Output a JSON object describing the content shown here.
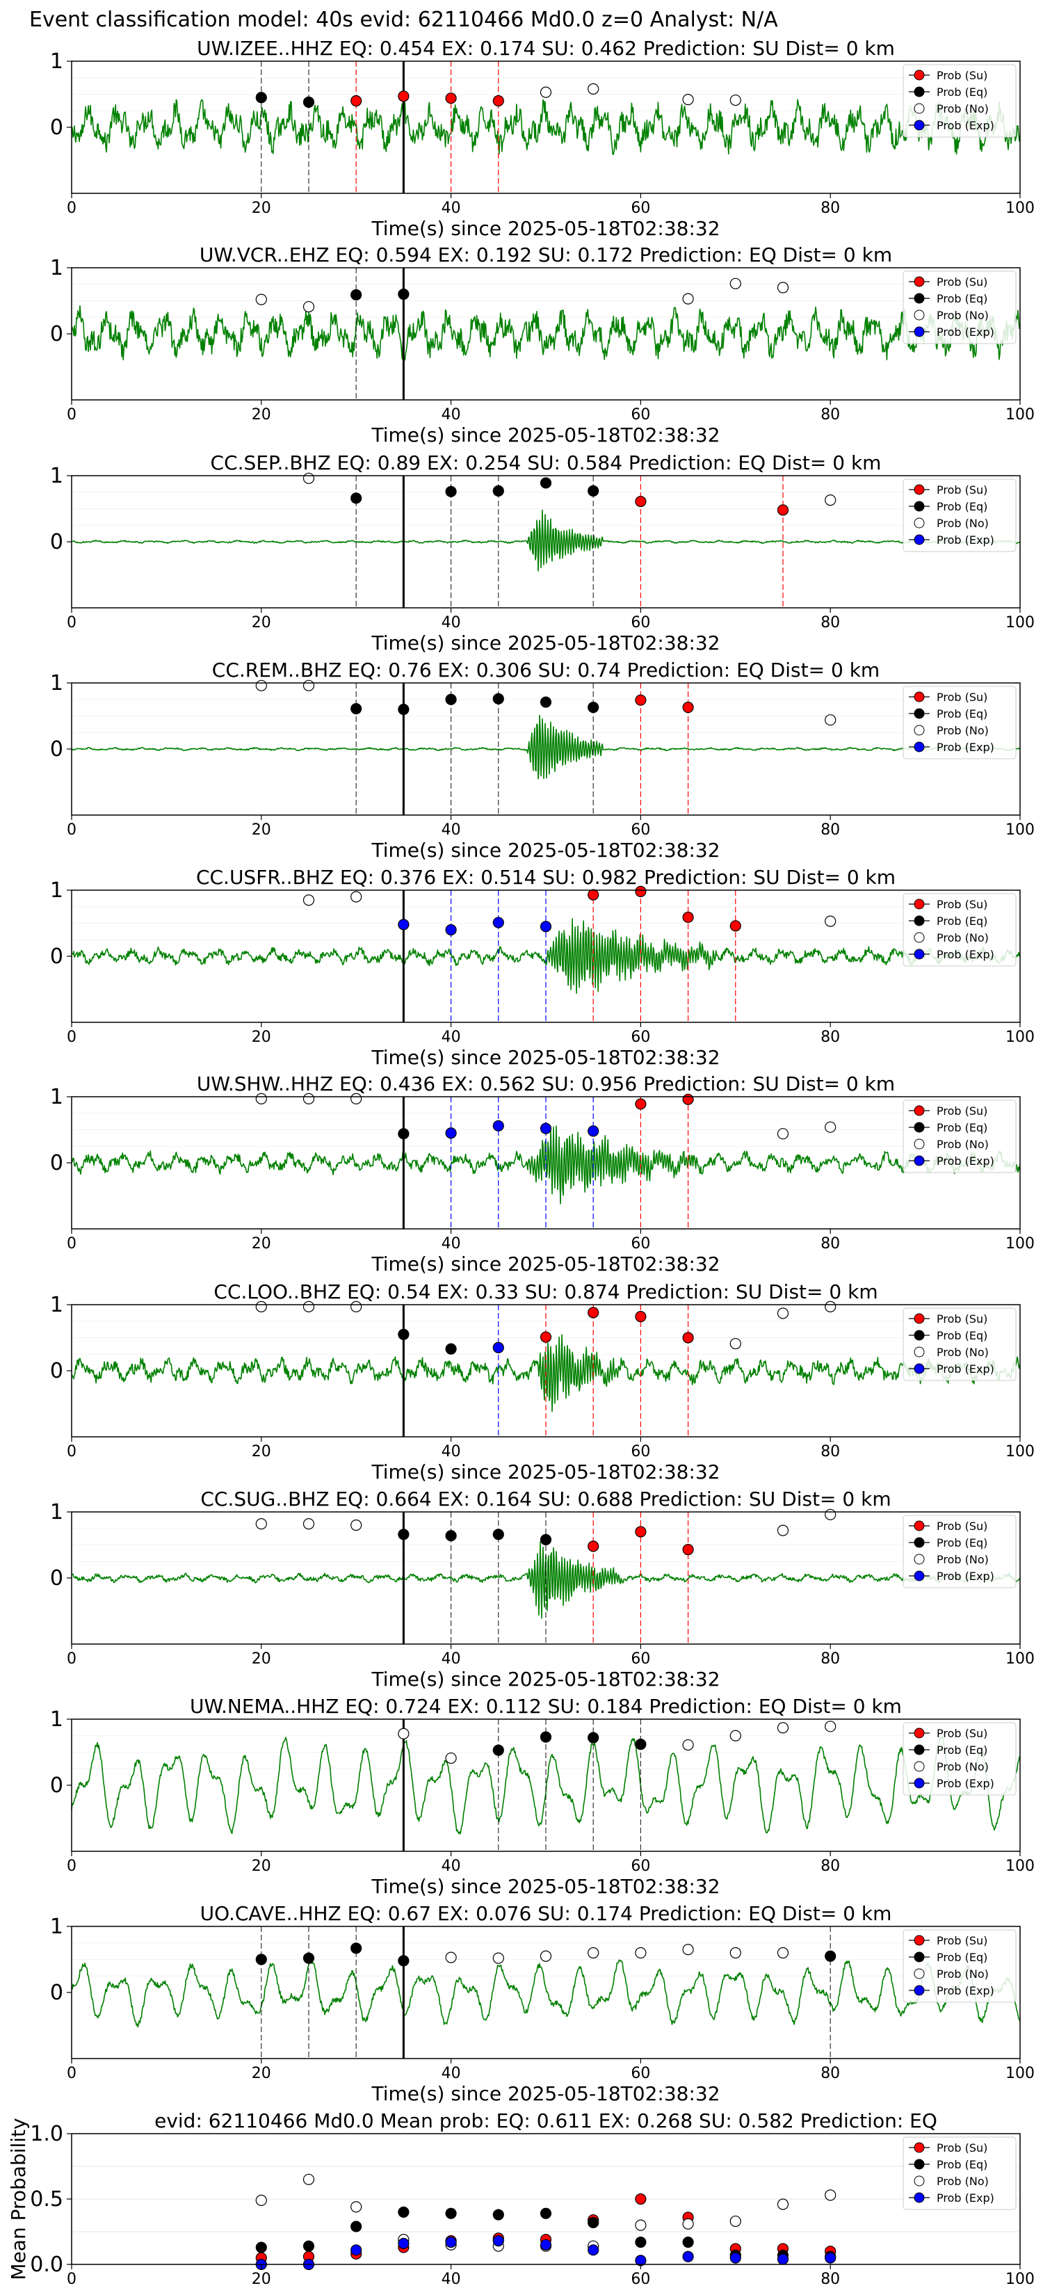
{
  "page_title": "Event classification model: 40s evid: 62110466 Md0.0 z=0 Analyst: N/A",
  "colors": {
    "waveform": "#008000",
    "su": "#ff0000",
    "eq": "#000000",
    "no": "#ffffff",
    "exp": "#0000ff",
    "pick": "#000000"
  },
  "legend": [
    "Prob (Su)",
    "Prob (Eq)",
    "Prob (No)",
    "Prob (Exp)"
  ],
  "chart_data": [
    {
      "type": "line",
      "title": "UW.IZEE..HHZ   EQ: 0.454  EX: 0.174  SU: 0.462   Prediction: SU    Dist= 0 km",
      "xlabel": "Time(s) since 2025-05-18T02:38:32",
      "ylabel": "",
      "xlim": [
        0,
        100
      ],
      "ylim": [
        -1,
        1
      ],
      "x_ticks": [
        "0",
        "20",
        "40",
        "60",
        "80",
        "100"
      ],
      "y_ticks": [
        "0",
        "1"
      ],
      "waveform": {
        "kind": "noisy",
        "amplitude": 0.35
      },
      "pick_time": 35,
      "su_lines": [
        30,
        35,
        40,
        45
      ],
      "eq_lines": [
        20,
        25
      ],
      "exp_lines": [],
      "series": [
        {
          "name": "Prob (Su)",
          "x": [
            30,
            35,
            40,
            45
          ],
          "y": [
            0.4,
            0.47,
            0.44,
            0.4
          ]
        },
        {
          "name": "Prob (Eq)",
          "x": [
            20,
            25
          ],
          "y": [
            0.45,
            0.38
          ]
        },
        {
          "name": "Prob (No)",
          "x": [
            50,
            55,
            65,
            70
          ],
          "y": [
            0.53,
            0.58,
            0.42,
            0.41
          ]
        },
        {
          "name": "Prob (Exp)",
          "x": [],
          "y": []
        }
      ]
    },
    {
      "type": "line",
      "title": "UW.VCR..EHZ   EQ: 0.594  EX: 0.192  SU: 0.172   Prediction: EQ    Dist= 0 km",
      "xlabel": "Time(s) since 2025-05-18T02:38:32",
      "ylabel": "",
      "xlim": [
        0,
        100
      ],
      "ylim": [
        -1,
        1
      ],
      "x_ticks": [
        "0",
        "20",
        "40",
        "60",
        "80",
        "100"
      ],
      "y_ticks": [
        "0",
        "1"
      ],
      "waveform": {
        "kind": "noisy",
        "amplitude": 0.35
      },
      "pick_time": 35,
      "su_lines": [],
      "eq_lines": [
        30,
        35
      ],
      "exp_lines": [],
      "series": [
        {
          "name": "Prob (Su)",
          "x": [],
          "y": []
        },
        {
          "name": "Prob (Eq)",
          "x": [
            30,
            35
          ],
          "y": [
            0.59,
            0.6
          ]
        },
        {
          "name": "Prob (No)",
          "x": [
            20,
            25,
            65,
            70,
            75
          ],
          "y": [
            0.52,
            0.41,
            0.53,
            0.76,
            0.7
          ]
        },
        {
          "name": "Prob (Exp)",
          "x": [],
          "y": []
        }
      ]
    },
    {
      "type": "line",
      "title": "CC.SEP..BHZ   EQ: 0.89  EX: 0.254  SU: 0.584   Prediction: EQ    Dist= 0 km",
      "xlabel": "Time(s) since 2025-05-18T02:38:32",
      "ylabel": "",
      "xlim": [
        0,
        100
      ],
      "ylim": [
        -1,
        1
      ],
      "x_ticks": [
        "0",
        "20",
        "40",
        "60",
        "80",
        "100"
      ],
      "y_ticks": [
        "0",
        "1"
      ],
      "waveform": {
        "kind": "burst",
        "amplitude": 0.02,
        "burst_start": 48,
        "burst_end": 56,
        "burst_amplitude": 0.8
      },
      "pick_time": 35,
      "su_lines": [
        60,
        75
      ],
      "eq_lines": [
        30,
        40,
        45,
        55
      ],
      "exp_lines": [],
      "series": [
        {
          "name": "Prob (Su)",
          "x": [
            60,
            75
          ],
          "y": [
            0.61,
            0.48
          ]
        },
        {
          "name": "Prob (Eq)",
          "x": [
            30,
            40,
            45,
            50,
            55
          ],
          "y": [
            0.66,
            0.76,
            0.77,
            0.89,
            0.77
          ]
        },
        {
          "name": "Prob (No)",
          "x": [
            25,
            80
          ],
          "y": [
            0.96,
            0.63
          ]
        },
        {
          "name": "Prob (Exp)",
          "x": [],
          "y": []
        }
      ]
    },
    {
      "type": "line",
      "title": "CC.REM..BHZ   EQ: 0.76  EX: 0.306  SU: 0.74   Prediction: EQ    Dist= 0 km",
      "xlabel": "Time(s) since 2025-05-18T02:38:32",
      "ylabel": "",
      "xlim": [
        0,
        100
      ],
      "ylim": [
        -1,
        1
      ],
      "x_ticks": [
        "0",
        "20",
        "40",
        "60",
        "80",
        "100"
      ],
      "y_ticks": [
        "0",
        "1"
      ],
      "waveform": {
        "kind": "burst",
        "amplitude": 0.02,
        "burst_start": 48,
        "burst_end": 56,
        "burst_amplitude": 0.95
      },
      "pick_time": 35,
      "su_lines": [
        60,
        65
      ],
      "eq_lines": [
        30,
        40,
        45,
        55
      ],
      "exp_lines": [],
      "series": [
        {
          "name": "Prob (Su)",
          "x": [
            60,
            65
          ],
          "y": [
            0.74,
            0.63
          ]
        },
        {
          "name": "Prob (Eq)",
          "x": [
            30,
            35,
            40,
            45,
            50,
            55
          ],
          "y": [
            0.61,
            0.6,
            0.75,
            0.76,
            0.71,
            0.63
          ]
        },
        {
          "name": "Prob (No)",
          "x": [
            20,
            25,
            80
          ],
          "y": [
            0.96,
            0.96,
            0.44
          ]
        },
        {
          "name": "Prob (Exp)",
          "x": [],
          "y": []
        }
      ]
    },
    {
      "type": "line",
      "title": "CC.USFR..BHZ   EQ: 0.376  EX: 0.514  SU: 0.982   Prediction: SU    Dist= 0 km",
      "xlabel": "Time(s) since 2025-05-18T02:38:32",
      "ylabel": "",
      "xlim": [
        0,
        100
      ],
      "ylim": [
        -1,
        1
      ],
      "x_ticks": [
        "0",
        "20",
        "40",
        "60",
        "80",
        "100"
      ],
      "y_ticks": [
        "0",
        "1"
      ],
      "waveform": {
        "kind": "burst",
        "amplitude": 0.12,
        "burst_start": 50,
        "burst_end": 68,
        "burst_amplitude": 0.95
      },
      "pick_time": 35,
      "su_lines": [
        55,
        60,
        65,
        70
      ],
      "eq_lines": [],
      "exp_lines": [
        40,
        45,
        50
      ],
      "series": [
        {
          "name": "Prob (Su)",
          "x": [
            55,
            60,
            65,
            70
          ],
          "y": [
            0.93,
            0.98,
            0.59,
            0.46
          ]
        },
        {
          "name": "Prob (Eq)",
          "x": [],
          "y": []
        },
        {
          "name": "Prob (No)",
          "x": [
            25,
            30,
            80
          ],
          "y": [
            0.85,
            0.9,
            0.53
          ]
        },
        {
          "name": "Prob (Exp)",
          "x": [
            35,
            40,
            45,
            50
          ],
          "y": [
            0.48,
            0.4,
            0.51,
            0.45
          ]
        }
      ]
    },
    {
      "type": "line",
      "title": "UW.SHW..HHZ   EQ: 0.436  EX: 0.562  SU: 0.956   Prediction: SU    Dist= 0 km",
      "xlabel": "Time(s) since 2025-05-18T02:38:32",
      "ylabel": "",
      "xlim": [
        0,
        100
      ],
      "ylim": [
        -1,
        1
      ],
      "x_ticks": [
        "0",
        "20",
        "40",
        "60",
        "80",
        "100"
      ],
      "y_ticks": [
        "0",
        "1"
      ],
      "waveform": {
        "kind": "burst",
        "amplitude": 0.15,
        "burst_start": 48,
        "burst_end": 66,
        "burst_amplitude": 0.9
      },
      "pick_time": 35,
      "su_lines": [
        60,
        65
      ],
      "eq_lines": [],
      "exp_lines": [
        40,
        45,
        50,
        55
      ],
      "series": [
        {
          "name": "Prob (Su)",
          "x": [
            60,
            65
          ],
          "y": [
            0.89,
            0.96
          ]
        },
        {
          "name": "Prob (Eq)",
          "x": [
            35
          ],
          "y": [
            0.44
          ]
        },
        {
          "name": "Prob (No)",
          "x": [
            20,
            25,
            30,
            75,
            80
          ],
          "y": [
            0.97,
            0.97,
            0.97,
            0.44,
            0.54
          ]
        },
        {
          "name": "Prob (Exp)",
          "x": [
            40,
            45,
            50,
            55
          ],
          "y": [
            0.45,
            0.56,
            0.52,
            0.48
          ]
        }
      ]
    },
    {
      "type": "line",
      "title": "CC.LOO..BHZ   EQ: 0.54  EX: 0.33  SU: 0.874   Prediction: SU    Dist= 0 km",
      "xlabel": "Time(s) since 2025-05-18T02:38:32",
      "ylabel": "",
      "xlim": [
        0,
        100
      ],
      "ylim": [
        -1,
        1
      ],
      "x_ticks": [
        "0",
        "20",
        "40",
        "60",
        "80",
        "100"
      ],
      "y_ticks": [
        "0",
        "1"
      ],
      "waveform": {
        "kind": "burst",
        "amplitude": 0.18,
        "burst_start": 49,
        "burst_end": 58,
        "burst_amplitude": 1.0
      },
      "pick_time": 35,
      "su_lines": [
        50,
        55,
        60,
        65
      ],
      "eq_lines": [],
      "exp_lines": [
        45
      ],
      "series": [
        {
          "name": "Prob (Su)",
          "x": [
            50,
            55,
            60,
            65
          ],
          "y": [
            0.51,
            0.88,
            0.82,
            0.5
          ]
        },
        {
          "name": "Prob (Eq)",
          "x": [
            35,
            40
          ],
          "y": [
            0.55,
            0.33
          ]
        },
        {
          "name": "Prob (No)",
          "x": [
            20,
            25,
            30,
            70,
            75,
            80
          ],
          "y": [
            0.97,
            0.97,
            0.97,
            0.41,
            0.87,
            0.97
          ]
        },
        {
          "name": "Prob (Exp)",
          "x": [
            45
          ],
          "y": [
            0.35
          ]
        }
      ]
    },
    {
      "type": "line",
      "title": "CC.SUG..BHZ   EQ: 0.664  EX: 0.164  SU: 0.688   Prediction: SU    Dist= 0 km",
      "xlabel": "Time(s) since 2025-05-18T02:38:32",
      "ylabel": "",
      "xlim": [
        0,
        100
      ],
      "ylim": [
        -1,
        1
      ],
      "x_ticks": [
        "0",
        "20",
        "40",
        "60",
        "80",
        "100"
      ],
      "y_ticks": [
        "0",
        "1"
      ],
      "waveform": {
        "kind": "burst",
        "amplitude": 0.06,
        "burst_start": 48,
        "burst_end": 58,
        "burst_amplitude": 0.95
      },
      "pick_time": 35,
      "su_lines": [
        55,
        60,
        65
      ],
      "eq_lines": [
        40,
        45,
        50
      ],
      "exp_lines": [],
      "series": [
        {
          "name": "Prob (Su)",
          "x": [
            55,
            60,
            65
          ],
          "y": [
            0.48,
            0.7,
            0.43
          ]
        },
        {
          "name": "Prob (Eq)",
          "x": [
            35,
            40,
            45,
            50
          ],
          "y": [
            0.66,
            0.64,
            0.66,
            0.58
          ]
        },
        {
          "name": "Prob (No)",
          "x": [
            20,
            25,
            30,
            75,
            80
          ],
          "y": [
            0.82,
            0.82,
            0.8,
            0.72,
            0.96
          ]
        },
        {
          "name": "Prob (Exp)",
          "x": [],
          "y": []
        }
      ]
    },
    {
      "type": "line",
      "title": "UW.NEMA..HHZ   EQ: 0.724  EX: 0.112  SU: 0.184   Prediction: EQ    Dist= 0 km",
      "xlabel": "Time(s) since 2025-05-18T02:38:32",
      "ylabel": "",
      "xlim": [
        0,
        100
      ],
      "ylim": [
        -1,
        1
      ],
      "x_ticks": [
        "0",
        "20",
        "40",
        "60",
        "80",
        "100"
      ],
      "y_ticks": [
        "0",
        "1"
      ],
      "waveform": {
        "kind": "smooth",
        "amplitude": 0.75
      },
      "pick_time": 35,
      "su_lines": [],
      "eq_lines": [
        45,
        50,
        55,
        60
      ],
      "exp_lines": [],
      "series": [
        {
          "name": "Prob (Su)",
          "x": [],
          "y": []
        },
        {
          "name": "Prob (Eq)",
          "x": [
            45,
            50,
            55,
            60
          ],
          "y": [
            0.53,
            0.73,
            0.72,
            0.62
          ]
        },
        {
          "name": "Prob (No)",
          "x": [
            35,
            40,
            65,
            70,
            75,
            80
          ],
          "y": [
            0.78,
            0.41,
            0.61,
            0.75,
            0.87,
            0.89
          ]
        },
        {
          "name": "Prob (Exp)",
          "x": [],
          "y": []
        }
      ]
    },
    {
      "type": "line",
      "title": "UO.CAVE..HHZ   EQ: 0.67  EX: 0.076  SU: 0.174   Prediction: EQ    Dist= 0 km",
      "xlabel": "Time(s) since 2025-05-18T02:38:32",
      "ylabel": "",
      "xlim": [
        0,
        100
      ],
      "ylim": [
        -1,
        1
      ],
      "x_ticks": [
        "0",
        "20",
        "40",
        "60",
        "80",
        "100"
      ],
      "y_ticks": [
        "0",
        "1"
      ],
      "waveform": {
        "kind": "smooth",
        "amplitude": 0.5
      },
      "pick_time": 35,
      "su_lines": [],
      "eq_lines": [
        20,
        25,
        30,
        80
      ],
      "exp_lines": [],
      "series": [
        {
          "name": "Prob (Su)",
          "x": [],
          "y": []
        },
        {
          "name": "Prob (Eq)",
          "x": [
            20,
            25,
            30,
            35,
            80
          ],
          "y": [
            0.5,
            0.52,
            0.67,
            0.48,
            0.55
          ]
        },
        {
          "name": "Prob (No)",
          "x": [
            40,
            45,
            50,
            55,
            60,
            65,
            70,
            75
          ],
          "y": [
            0.53,
            0.52,
            0.55,
            0.6,
            0.6,
            0.65,
            0.6,
            0.6
          ]
        },
        {
          "name": "Prob (Exp)",
          "x": [],
          "y": []
        }
      ]
    },
    {
      "type": "scatter",
      "title": "evid: 62110466  Md0.0   Mean prob:   EQ: 0.611  EX: 0.268  SU: 0.582   Prediction: EQ",
      "xlabel": "",
      "ylabel": "Mean Probability",
      "xlim": [
        0,
        100
      ],
      "ylim": [
        0,
        1
      ],
      "x_ticks": [
        "0",
        "20",
        "40",
        "60",
        "80",
        "100"
      ],
      "y_ticks": [
        "0.0",
        "0.5",
        "1.0"
      ],
      "series": [
        {
          "name": "Prob (Su)",
          "x": [
            20,
            25,
            30,
            35,
            40,
            45,
            50,
            55,
            60,
            65,
            70,
            75,
            80
          ],
          "y": [
            0.05,
            0.06,
            0.08,
            0.13,
            0.18,
            0.2,
            0.19,
            0.34,
            0.5,
            0.36,
            0.12,
            0.12,
            0.1
          ]
        },
        {
          "name": "Prob (Eq)",
          "x": [
            20,
            25,
            30,
            35,
            40,
            45,
            50,
            55,
            60,
            65,
            70,
            75,
            80
          ],
          "y": [
            0.13,
            0.14,
            0.29,
            0.4,
            0.39,
            0.38,
            0.39,
            0.32,
            0.17,
            0.17,
            0.07,
            0.07,
            0.06
          ]
        },
        {
          "name": "Prob (No)",
          "x": [
            20,
            25,
            30,
            35,
            40,
            45,
            50,
            55,
            60,
            65,
            70,
            75,
            80
          ],
          "y": [
            0.49,
            0.65,
            0.44,
            0.19,
            0.15,
            0.14,
            0.14,
            0.14,
            0.3,
            0.31,
            0.33,
            0.46,
            0.53
          ]
        },
        {
          "name": "Prob (Exp)",
          "x": [
            20,
            25,
            30,
            35,
            40,
            45,
            50,
            55,
            60,
            65,
            70,
            75,
            80
          ],
          "y": [
            0.0,
            0.0,
            0.11,
            0.16,
            0.17,
            0.18,
            0.15,
            0.11,
            0.03,
            0.06,
            0.05,
            0.04,
            0.05
          ]
        }
      ]
    }
  ]
}
